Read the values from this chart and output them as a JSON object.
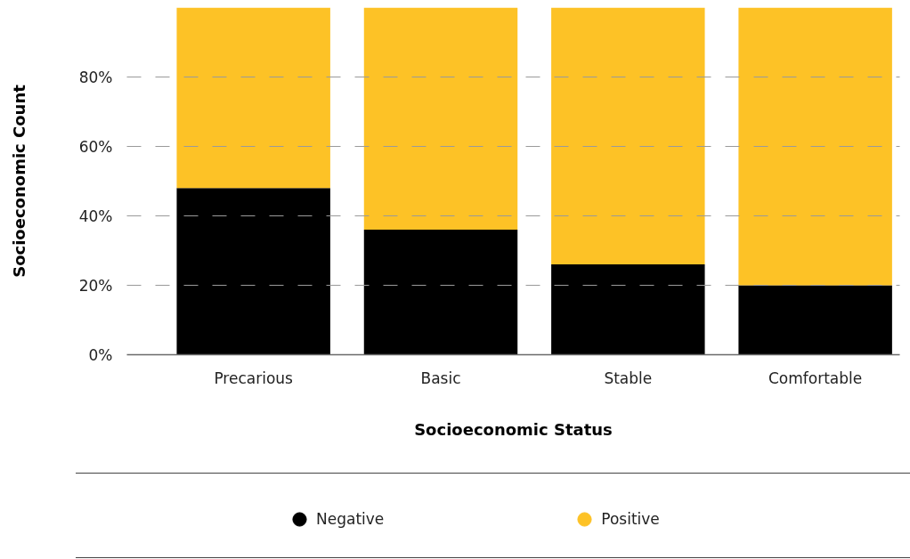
{
  "chart_data": {
    "type": "bar",
    "stacked": true,
    "xlabel": "Socioeconomic Status",
    "ylabel": "Socioeconomic Count",
    "categories": [
      "Precarious",
      "Basic",
      "Stable",
      "Comfortable"
    ],
    "series": [
      {
        "name": "Negative",
        "color": "#000000",
        "values": [
          48,
          36,
          26,
          20
        ]
      },
      {
        "name": "Positive",
        "color": "#fdc226",
        "values": [
          52,
          64,
          74,
          80
        ]
      }
    ],
    "ylim": [
      0,
      100
    ],
    "yticks": [
      {
        "value": 0,
        "label": "0%"
      },
      {
        "value": 20,
        "label": "20%"
      },
      {
        "value": 40,
        "label": "40%"
      },
      {
        "value": 60,
        "label": "60%"
      },
      {
        "value": 80,
        "label": "80%"
      }
    ],
    "grid": "y",
    "legend": "bottom"
  }
}
